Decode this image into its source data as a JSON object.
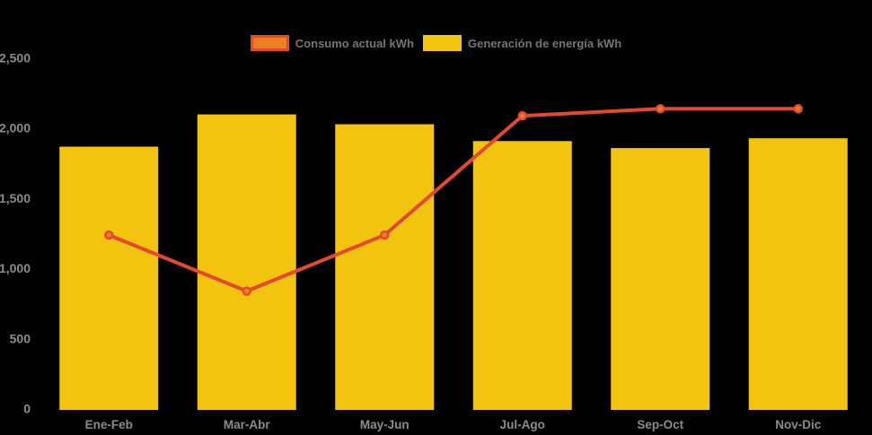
{
  "page": {
    "background": "#000000",
    "axis_label_color": "#8c8c8c",
    "legend_text_color": "#757575"
  },
  "legend": {
    "items": [
      {
        "label": "Consumo actual kWh",
        "swatch_fill": "#ee7e23",
        "swatch_border": "#e2492f"
      },
      {
        "label": "Generación de energía kWh",
        "swatch_fill": "#f2c40f",
        "swatch_border": "#f2c40f"
      }
    ]
  },
  "chart_data": {
    "type": "bar",
    "subtype": "bar-with-line-overlay",
    "categories": [
      "Ene-Feb",
      "Mar-Abr",
      "May-Jun",
      "Jul-Ago",
      "Sep-Oct",
      "Nov-Dic"
    ],
    "series": [
      {
        "name": "Generación de energía kWh",
        "type": "bar",
        "color": "#f2c40f",
        "values": [
          1870,
          2100,
          2030,
          1910,
          1860,
          1930
        ]
      },
      {
        "name": "Consumo actual kWh",
        "type": "line",
        "color": "#e2492f",
        "marker_color": "#ee7e23",
        "values": [
          1240,
          840,
          1240,
          2090,
          2140,
          2140
        ]
      }
    ],
    "title": "",
    "xlabel": "",
    "ylabel": "",
    "ylim": [
      0,
      2500
    ],
    "y_ticks": [
      0,
      500,
      1000,
      1500,
      2000,
      2500
    ],
    "y_tick_labels": [
      "0",
      "500",
      "1,000",
      "1,500",
      "2,000",
      "2,500"
    ],
    "grid": false,
    "legend_position": "top-center",
    "background": "#000000"
  }
}
